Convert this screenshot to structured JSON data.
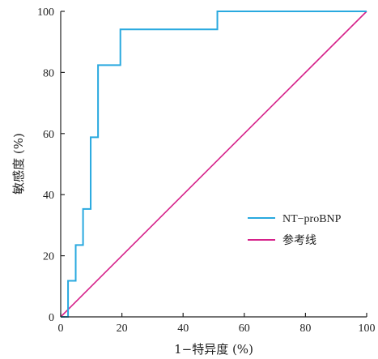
{
  "chart_data": {
    "type": "line",
    "xlabel": "1−特异度 (%)",
    "ylabel": "敏感度 (%)",
    "xlim": [
      0,
      100
    ],
    "ylim": [
      0,
      100
    ],
    "xticks": [
      "0",
      "20",
      "40",
      "60",
      "80",
      "100"
    ],
    "yticks": [
      "0",
      "20",
      "40",
      "60",
      "80",
      "100"
    ],
    "grid": false,
    "legend_position": "bottom-right",
    "series": [
      {
        "name": "NT−proBNP",
        "color": "#29a9df",
        "step": true,
        "x": [
          0,
          2.4,
          2.4,
          4.9,
          4.9,
          7.3,
          7.3,
          9.8,
          9.8,
          12.2,
          12.2,
          19.5,
          19.5,
          51.2,
          51.2,
          100
        ],
        "y": [
          0,
          0,
          11.8,
          11.8,
          23.5,
          23.5,
          35.3,
          35.3,
          58.8,
          58.8,
          82.4,
          82.4,
          94.1,
          94.1,
          100,
          100
        ]
      },
      {
        "name": "参考线",
        "color": "#d6218a",
        "step": false,
        "x": [
          0,
          100
        ],
        "y": [
          0,
          100
        ]
      }
    ]
  }
}
